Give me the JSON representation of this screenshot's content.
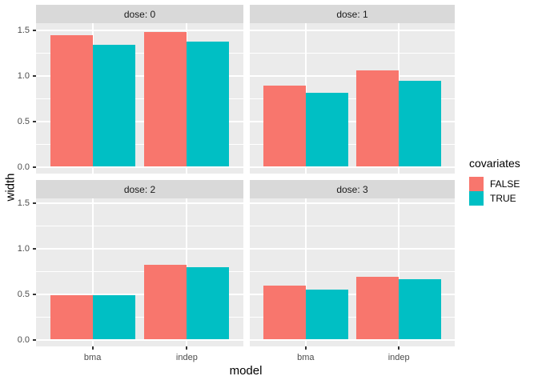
{
  "style": {
    "background": "#FFFFFF",
    "panel_bg": "#EBEBEB",
    "strip_bg": "#D9D9D9",
    "grid_color": "#FFFFFF",
    "axis_text_color": "#4D4D4D",
    "strip_text_color": "#1A1A1A",
    "tick_color": "#333333"
  },
  "chart_data": {
    "type": "bar",
    "title": "",
    "xlabel": "model",
    "ylabel": "width",
    "categories": [
      "bma",
      "indep"
    ],
    "y_tick_values": [
      0,
      0.5,
      1.0,
      1.5
    ],
    "y_tick_labels": [
      "0.0",
      "0.5",
      "1.0",
      "1.5"
    ],
    "y_minor_ticks": [
      0.25,
      0.75,
      1.25
    ],
    "ylim": [
      -0.07,
      1.57
    ],
    "grid": true,
    "facet_variable": "dose",
    "legend": {
      "title": "covariates",
      "position": "right",
      "entries": [
        {
          "label": "FALSE",
          "color": "#F8766D"
        },
        {
          "label": "TRUE",
          "color": "#00BFC4"
        }
      ]
    },
    "facets": [
      {
        "label": "dose: 0",
        "series": [
          {
            "name": "FALSE",
            "values": [
              1.44,
              1.48
            ]
          },
          {
            "name": "TRUE",
            "values": [
              1.34,
              1.37
            ]
          }
        ]
      },
      {
        "label": "dose: 1",
        "series": [
          {
            "name": "FALSE",
            "values": [
              0.89,
              1.06
            ]
          },
          {
            "name": "TRUE",
            "values": [
              0.81,
              0.94
            ]
          }
        ]
      },
      {
        "label": "dose: 2",
        "series": [
          {
            "name": "FALSE",
            "values": [
              0.49,
              0.82
            ]
          },
          {
            "name": "TRUE",
            "values": [
              0.49,
              0.79
            ]
          }
        ]
      },
      {
        "label": "dose: 3",
        "series": [
          {
            "name": "FALSE",
            "values": [
              0.59,
              0.69
            ]
          },
          {
            "name": "TRUE",
            "values": [
              0.55,
              0.66
            ]
          }
        ]
      }
    ]
  }
}
